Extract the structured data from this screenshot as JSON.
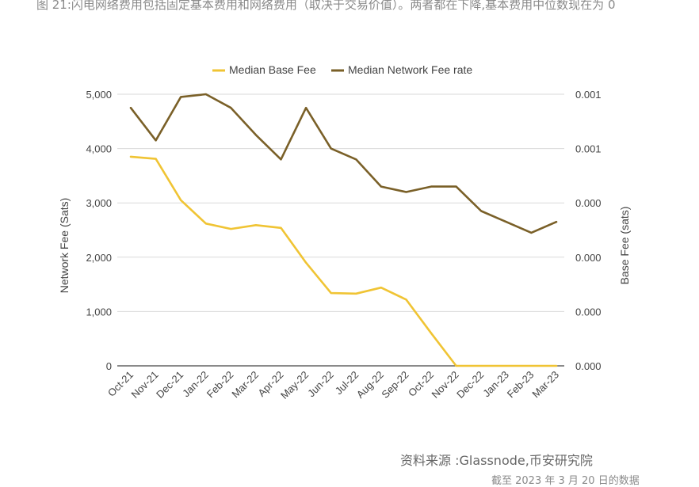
{
  "caption": "图 21:闪电网络费用包括固定基本费用和网络费用（取决于交易价值）。两者都在下降,基本费用中位数现在为 0",
  "source": "资料来源 :Glassnode,币安研究院",
  "footnote": "截至 2023 年 3 月 20 日的数据",
  "colors": {
    "base_fee": "#f0c434",
    "network_fee": "#7a6028",
    "grid": "#d9d9d9",
    "text": "#444444"
  },
  "chart_data": {
    "type": "line",
    "legend_position": "top",
    "grid": true,
    "categories": [
      "Oct-21",
      "Nov-21",
      "Dec-21",
      "Jan-22",
      "Feb-22",
      "Mar-22",
      "Apr-22",
      "May-22",
      "Jun-22",
      "Jul-22",
      "Aug-22",
      "Sep-22",
      "Oct-22",
      "Nov-22",
      "Dec-22",
      "Jan-23",
      "Feb-23",
      "Mar-23"
    ],
    "left_axis": {
      "label": "Network Fee (Sats)",
      "min": 0,
      "max": 5000,
      "ticks": [
        "0",
        "1,000",
        "2,000",
        "3,000",
        "4,000",
        "5,000"
      ]
    },
    "right_axis": {
      "label": "Base Fee (sats)",
      "ticks": [
        "0.000",
        "0.000",
        "0.000",
        "0.000",
        "0.001",
        "0.001"
      ]
    },
    "series": [
      {
        "name": "Median Base Fee",
        "color": "#f0c434",
        "axis": "left",
        "values": [
          3850,
          3810,
          3050,
          2620,
          2520,
          2590,
          2540,
          1900,
          1340,
          1330,
          1440,
          1220,
          600,
          0,
          0,
          0,
          0,
          0
        ]
      },
      {
        "name": "Median Network Fee rate",
        "color": "#7a6028",
        "axis": "right",
        "values": [
          0.00095,
          0.00083,
          0.00099,
          0.001,
          0.00095,
          0.00085,
          0.00076,
          0.00095,
          0.0008,
          0.00076,
          0.00066,
          0.00064,
          0.00066,
          0.00066,
          0.00057,
          0.00053,
          0.00049,
          0.00053
        ]
      }
    ],
    "right_axis_scale": {
      "min": 0,
      "max": 0.001
    }
  }
}
